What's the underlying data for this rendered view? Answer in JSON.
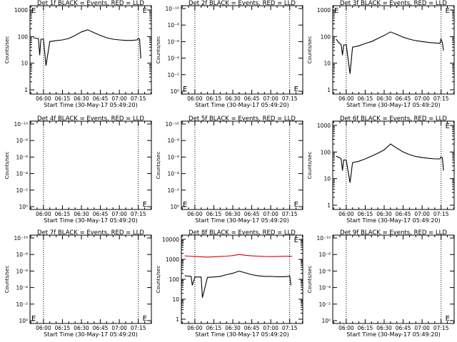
{
  "figure": {
    "panels": [
      {
        "id": "det1",
        "title": "Det 1f BLACK = Events, RED = LLD",
        "xlabel": "Start Time (30-May-17 05:49:20)",
        "ylabel": "Counts/sec",
        "scale": "log",
        "yticks": [
          "1",
          "10",
          "100",
          "1000"
        ],
        "ytick_values": [
          1,
          10,
          100,
          1000
        ],
        "xticks": [
          "06:00",
          "06:15",
          "06:30",
          "06:45",
          "07:00",
          "07:15"
        ],
        "has_data": true,
        "corner_marks": [
          {
            "text": "E",
            "pos": "top-left"
          },
          {
            "text": "E",
            "pos": "top-right"
          }
        ]
      },
      {
        "id": "det2",
        "title": "Det 2f BLACK = Events, RED = LLD",
        "xlabel": "Start Time (30-May-17 05:49:20)",
        "ylabel": "Counts/sec",
        "scale": "tiny",
        "yticks": [
          "10⁰",
          "10⁻²",
          "10⁻⁴",
          "10⁻⁶",
          "10⁻⁸",
          "10⁻¹⁰"
        ],
        "xticks": [
          "06:00",
          "06:15",
          "06:30",
          "06:45",
          "07:00",
          "07:15"
        ],
        "has_data": false,
        "corner_marks": [
          {
            "text": "E",
            "pos": "bottom-left"
          },
          {
            "text": "E",
            "pos": "bottom-right"
          }
        ]
      },
      {
        "id": "det3",
        "title": "Det 3f BLACK = Events, RED = LLD",
        "xlabel": "Start Time (30-May-17 05:49:20)",
        "ylabel": "Counts/sec",
        "scale": "log",
        "yticks": [
          "1",
          "10",
          "100",
          "1000"
        ],
        "ytick_values": [
          1,
          10,
          100,
          1000
        ],
        "xticks": [
          "06:00",
          "06:15",
          "06:30",
          "06:45",
          "07:00",
          "07:15"
        ],
        "has_data": true,
        "corner_marks": [
          {
            "text": "E",
            "pos": "top-left"
          },
          {
            "text": "E",
            "pos": "top-right"
          }
        ]
      },
      {
        "id": "det4",
        "title": "Det 4f BLACK = Events, RED = LLD",
        "xlabel": "Start Time (30-May-17 05:49:20)",
        "ylabel": "Counts/sec",
        "scale": "tiny",
        "yticks": [
          "10⁰",
          "10⁻²",
          "10⁻⁴",
          "10⁻⁶",
          "10⁻⁸",
          "10⁻¹⁰"
        ],
        "xticks": [
          "06:00",
          "06:15",
          "06:30",
          "06:45",
          "07:00",
          "07:15"
        ],
        "has_data": false,
        "corner_marks": [
          {
            "text": "E",
            "pos": "bottom-right"
          }
        ]
      },
      {
        "id": "det5",
        "title": "Det 5f BLACK = Events, RED = LLD",
        "xlabel": "Start Time (30-May-17 05:49:20)",
        "ylabel": "Counts/sec",
        "scale": "tiny",
        "yticks": [
          "10⁰",
          "10⁻²",
          "10⁻⁴",
          "10⁻⁶",
          "10⁻⁸",
          "10⁻¹⁰"
        ],
        "xticks": [
          "06:00",
          "06:15",
          "06:30",
          "06:45",
          "07:00",
          "07:15"
        ],
        "has_data": false,
        "corner_marks": [
          {
            "text": "E",
            "pos": "bottom-left"
          },
          {
            "text": "E",
            "pos": "bottom-right"
          }
        ]
      },
      {
        "id": "det6",
        "title": "Det 6f BLACK = Events, RED = LLD",
        "xlabel": "Start Time (30-May-17 05:49:20)",
        "ylabel": "Counts/sec",
        "scale": "log",
        "yticks": [
          "1",
          "10",
          "100",
          "1000"
        ],
        "ytick_values": [
          1,
          10,
          100,
          1000
        ],
        "xticks": [
          "06:00",
          "06:15",
          "06:30",
          "06:45",
          "07:00",
          "07:15"
        ],
        "has_data": true,
        "corner_marks": [
          {
            "text": "E",
            "pos": "top-right"
          }
        ]
      },
      {
        "id": "det7",
        "title": "Det 7f BLACK = Events, RED = LLD",
        "xlabel": "Start Time (30-May-17 05:49:20)",
        "ylabel": "Counts/sec",
        "scale": "tiny",
        "yticks": [
          "10⁰",
          "10⁻²",
          "10⁻⁴",
          "10⁻⁶",
          "10⁻⁸",
          "10⁻¹⁰"
        ],
        "xticks": [
          "06:00",
          "06:15",
          "06:30",
          "06:45",
          "07:00",
          "07:15"
        ],
        "has_data": false,
        "corner_marks": [
          {
            "text": "E",
            "pos": "bottom-left"
          },
          {
            "text": "E",
            "pos": "bottom-right"
          }
        ]
      },
      {
        "id": "det8",
        "title": "Det 8f BLACK = Events, RED = LLD",
        "xlabel": "Start Time (30-May-17 05:49:20)",
        "ylabel": "Counts/sec",
        "scale": "log",
        "yticks": [
          "1",
          "10",
          "100",
          "1000",
          "10000"
        ],
        "ytick_values": [
          1,
          10,
          100,
          1000,
          10000
        ],
        "xticks": [
          "06:00",
          "06:15",
          "06:30",
          "06:45",
          "07:00",
          "07:15"
        ],
        "has_data": true,
        "has_lld": true,
        "corner_marks": [
          {
            "text": "E",
            "pos": "top-right"
          }
        ]
      },
      {
        "id": "det9",
        "title": "Det 9f BLACK = Events, RED = LLD",
        "xlabel": "Start Time (30-May-17 05:49:20)",
        "ylabel": "Counts/sec",
        "scale": "tiny",
        "yticks": [
          "10⁰",
          "10⁻²",
          "10⁻⁴",
          "10⁻⁶",
          "10⁻⁸",
          "10⁻¹⁰"
        ],
        "xticks": [
          "06:00",
          "06:15",
          "06:30",
          "06:45",
          "07:00",
          "07:15"
        ],
        "has_data": false,
        "corner_marks": [
          {
            "text": "E",
            "pos": "bottom-right"
          }
        ]
      }
    ]
  },
  "chart_data": [
    {
      "type": "line",
      "title": "Det 1f BLACK = Events, RED = LLD",
      "xlabel": "Start Time (30-May-17 05:49:20)",
      "ylabel": "Counts/sec",
      "yscale": "log",
      "ylim": [
        1,
        1000
      ],
      "xlim": [
        5.8222,
        7.4222
      ],
      "xlim_hhmm": [
        "05:49:20",
        "07:25:20"
      ],
      "vlines_hhmm": [
        "06:00",
        "07:15"
      ],
      "series": [
        {
          "name": "Events",
          "color": "#000000",
          "x": [
            "05:52",
            "05:55",
            "05:56",
            "05:57",
            "05:58",
            "06:00",
            "06:02",
            "06:05",
            "06:10",
            "06:15",
            "06:20",
            "06:25",
            "06:30",
            "06:35",
            "06:40",
            "06:45",
            "06:50",
            "06:55",
            "07:00",
            "07:05",
            "07:10",
            "07:14",
            "07:15",
            "07:16",
            "07:17"
          ],
          "y": [
            90,
            85,
            85,
            20,
            80,
            80,
            8,
            65,
            70,
            75,
            85,
            110,
            150,
            180,
            140,
            110,
            90,
            80,
            75,
            72,
            72,
            75,
            85,
            80,
            15
          ]
        }
      ]
    },
    {
      "type": "line",
      "title": "Det 2f BLACK = Events, RED = LLD",
      "xlabel": "Start Time (30-May-17 05:49:20)",
      "ylabel": "Counts/sec",
      "yscale": "log",
      "xlim_hhmm": [
        "05:49:20",
        "07:25:20"
      ],
      "vlines_hhmm": [
        "06:00",
        "07:15"
      ],
      "series": []
    },
    {
      "type": "line",
      "title": "Det 3f BLACK = Events, RED = LLD",
      "xlabel": "Start Time (30-May-17 05:49:20)",
      "ylabel": "Counts/sec",
      "yscale": "log",
      "ylim": [
        1,
        1000
      ],
      "xlim_hhmm": [
        "05:49:20",
        "07:25:20"
      ],
      "vlines_hhmm": [
        "06:00",
        "07:15"
      ],
      "series": [
        {
          "name": "Events",
          "color": "#000000",
          "x": [
            "05:52",
            "05:54",
            "05:56",
            "05:57",
            "05:58",
            "06:00",
            "06:03",
            "06:05",
            "06:10",
            "06:15",
            "06:20",
            "06:25",
            "06:30",
            "06:35",
            "06:40",
            "06:45",
            "06:50",
            "06:55",
            "07:00",
            "07:05",
            "07:10",
            "07:14",
            "07:15",
            "07:16",
            "07:17"
          ],
          "y": [
            80,
            60,
            50,
            20,
            48,
            50,
            4,
            40,
            45,
            55,
            65,
            85,
            110,
            150,
            120,
            95,
            80,
            70,
            65,
            60,
            58,
            55,
            80,
            60,
            30
          ]
        }
      ]
    },
    {
      "type": "line",
      "title": "Det 4f BLACK = Events, RED = LLD",
      "xlabel": "Start Time (30-May-17 05:49:20)",
      "ylabel": "Counts/sec",
      "yscale": "log",
      "xlim_hhmm": [
        "05:49:20",
        "07:25:20"
      ],
      "vlines_hhmm": [
        "06:00",
        "07:15"
      ],
      "series": []
    },
    {
      "type": "line",
      "title": "Det 5f BLACK = Events, RED = LLD",
      "xlabel": "Start Time (30-May-17 05:49:20)",
      "ylabel": "Counts/sec",
      "yscale": "log",
      "xlim_hhmm": [
        "05:49:20",
        "07:25:20"
      ],
      "vlines_hhmm": [
        "06:00",
        "07:15"
      ],
      "series": []
    },
    {
      "type": "line",
      "title": "Det 6f BLACK = Events, RED = LLD",
      "xlabel": "Start Time (30-May-17 05:49:20)",
      "ylabel": "Counts/sec",
      "yscale": "log",
      "ylim": [
        1,
        1000
      ],
      "xlim_hhmm": [
        "05:49:20",
        "07:25:20"
      ],
      "vlines_hhmm": [
        "06:00",
        "07:15"
      ],
      "series": [
        {
          "name": "Events",
          "color": "#000000",
          "x": [
            "05:52",
            "05:55",
            "05:56",
            "05:57",
            "05:58",
            "06:00",
            "06:03",
            "06:05",
            "06:10",
            "06:15",
            "06:20",
            "06:25",
            "06:30",
            "06:35",
            "06:40",
            "06:45",
            "06:50",
            "06:55",
            "07:00",
            "07:05",
            "07:10",
            "07:14",
            "07:15",
            "07:16",
            "07:17"
          ],
          "y": [
            70,
            60,
            55,
            20,
            50,
            50,
            7,
            40,
            45,
            55,
            70,
            90,
            120,
            200,
            140,
            100,
            80,
            68,
            62,
            58,
            55,
            55,
            65,
            60,
            20
          ]
        }
      ]
    },
    {
      "type": "line",
      "title": "Det 7f BLACK = Events, RED = LLD",
      "xlabel": "Start Time (30-May-17 05:49:20)",
      "ylabel": "Counts/sec",
      "yscale": "log",
      "xlim_hhmm": [
        "05:49:20",
        "07:25:20"
      ],
      "vlines_hhmm": [
        "06:00",
        "07:15"
      ],
      "series": []
    },
    {
      "type": "line",
      "title": "Det 8f BLACK = Events, RED = LLD",
      "xlabel": "Start Time (30-May-17 05:49:20)",
      "ylabel": "Counts/sec",
      "yscale": "log",
      "ylim": [
        1,
        10000
      ],
      "xlim_hhmm": [
        "05:49:20",
        "07:25:20"
      ],
      "vlines_hhmm": [
        "06:00",
        "07:15"
      ],
      "series": [
        {
          "name": "Events",
          "color": "#000000",
          "x": [
            "05:52",
            "05:55",
            "05:57",
            "05:58",
            "06:00",
            "06:05",
            "06:06",
            "06:10",
            "06:15",
            "06:20",
            "06:25",
            "06:30",
            "06:35",
            "06:40",
            "06:45",
            "06:50",
            "06:55",
            "07:00",
            "07:05",
            "07:10",
            "07:14",
            "07:15",
            "07:16"
          ],
          "y": [
            150,
            145,
            140,
            50,
            130,
            130,
            12,
            125,
            130,
            140,
            170,
            200,
            260,
            210,
            170,
            150,
            140,
            140,
            135,
            135,
            140,
            150,
            50
          ]
        },
        {
          "name": "LLD",
          "color": "#dd0000",
          "x": [
            "05:52",
            "05:55",
            "06:00",
            "06:05",
            "06:10",
            "06:15",
            "06:20",
            "06:25",
            "06:30",
            "06:35",
            "06:40",
            "06:45",
            "06:50",
            "06:55",
            "07:00",
            "07:05",
            "07:10",
            "07:15",
            "07:17"
          ],
          "y": [
            1500,
            1450,
            1400,
            1350,
            1300,
            1350,
            1400,
            1450,
            1550,
            1750,
            1600,
            1500,
            1450,
            1400,
            1380,
            1400,
            1420,
            1450,
            1400
          ]
        }
      ]
    },
    {
      "type": "line",
      "title": "Det 9f BLACK = Events, RED = LLD",
      "xlabel": "Start Time (30-May-17 05:49:20)",
      "ylabel": "Counts/sec",
      "yscale": "log",
      "xlim_hhmm": [
        "05:49:20",
        "07:25:20"
      ],
      "vlines_hhmm": [
        "06:00",
        "07:15"
      ],
      "series": []
    }
  ]
}
